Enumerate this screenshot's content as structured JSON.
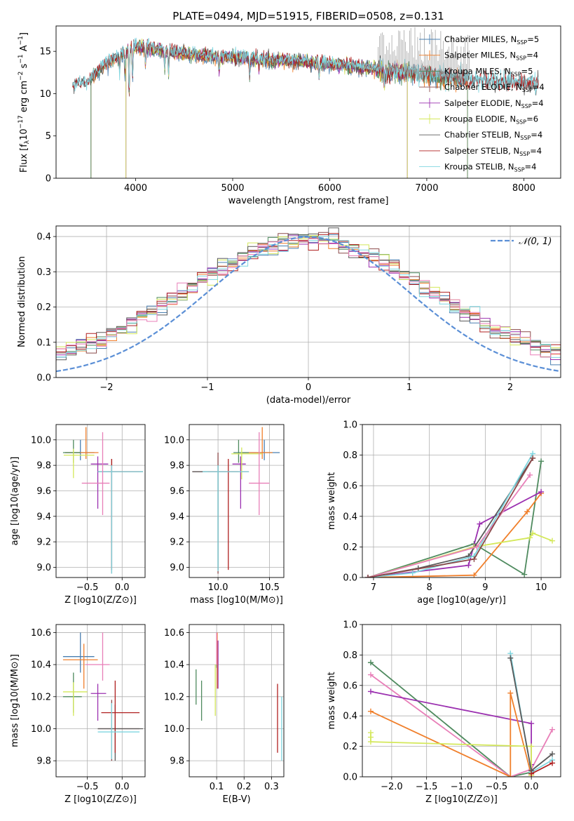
{
  "title": "PLATE=0494, MJD=51915, FIBERID=0508, z=0.131",
  "colors": {
    "chabrier_miles": "#4a7fb0",
    "salpeter_miles": "#f07f2b",
    "kroupa_miles": "#4e8a5e",
    "chabrier_elodie": "#8b4a4a",
    "salpeter_elodie": "#9b30b0",
    "kroupa_elodie": "#d4e85a",
    "chabrier_stelib": "#5a5a5a",
    "salpeter_stelib": "#b02020",
    "kroupa_stelib": "#7fd6e0",
    "pink": "#e87fb8",
    "normal": "#5b8fd6",
    "grid": "#b0b0b0"
  },
  "chart_data": [
    {
      "id": "spectrum",
      "type": "line",
      "title": "PLATE=0494, MJD=51915, FIBERID=0508, z=0.131",
      "xlabel": "wavelength [Angstrom, rest frame]",
      "ylabel": "Flux [f_λ 10^-17 erg cm^-2 s^-1 A^-1]",
      "xlim": [
        3180,
        8380
      ],
      "ylim": [
        0,
        18
      ],
      "xticks": [
        "4000",
        "5000",
        "6000",
        "7000",
        "8000"
      ],
      "yticks": [
        "0",
        "5",
        "10",
        "15"
      ],
      "legend_position": "upper right",
      "legend": [
        "Chabrier MILES, N_SSP=5",
        "Salpeter MILES, N_SSP=4",
        "Kroupa MILES, N_SSP=5",
        "Chabrier ELODIE, N_SSP=4",
        "Salpeter ELODIE, N_SSP=4",
        "Kroupa ELODIE, N_SSP=6",
        "Chabrier STELIB, N_SSP=4",
        "Salpeter STELIB, N_SSP=4",
        "Kroupa STELIB, N_SSP=4"
      ],
      "continuum": {
        "x": [
          3350,
          3500,
          3700,
          3850,
          4000,
          4200,
          4400,
          4600,
          4800,
          5000,
          5200,
          5400,
          5600,
          5800,
          6000,
          6200,
          6400,
          6600,
          6800,
          7000,
          7200,
          7400,
          7600,
          7800,
          8000,
          8150
        ],
        "y": [
          10.9,
          11.3,
          13.6,
          14.6,
          15.6,
          15.3,
          14.9,
          14.6,
          14.4,
          14.3,
          14.2,
          14.0,
          13.9,
          13.7,
          13.5,
          13.3,
          13.0,
          12.7,
          12.5,
          12.2,
          12.0,
          11.7,
          11.5,
          11.3,
          11.1,
          11.1
        ]
      }
    },
    {
      "id": "residuals",
      "type": "line",
      "xlabel": "(data-model)/error",
      "ylabel": "Normed distribution",
      "xlim": [
        -2.5,
        2.5
      ],
      "ylim": [
        0,
        0.43
      ],
      "xticks": [
        "−2",
        "−1",
        "0",
        "1",
        "2"
      ],
      "yticks": [
        "0.0",
        "0.1",
        "0.2",
        "0.3",
        "0.4"
      ],
      "legend": [
        "𝒩(0, 1)"
      ],
      "series_reference": {
        "name": "𝒩(0, 1)",
        "mean": 0,
        "sigma": 1
      },
      "histogram_bin_width": 0.1
    },
    {
      "id": "age_vs_Z",
      "type": "scatter",
      "xlabel": "Z [log10(Z/Z⊙)]",
      "ylabel": "age [log10(age/yr)]",
      "xlim": [
        -0.95,
        0.33
      ],
      "ylim": [
        8.92,
        10.12
      ],
      "xticks": [
        "−0.5",
        "0.0"
      ],
      "yticks": [
        "9.0",
        "9.2",
        "9.4",
        "9.6",
        "9.8",
        "10.0"
      ],
      "points": [
        {
          "x": -0.6,
          "y": 9.9,
          "xerr": [
            0.22,
            0.2
          ],
          "yerr": [
            0.06,
            0.1
          ],
          "c": "chabrier_miles"
        },
        {
          "x": -0.52,
          "y": 9.9,
          "xerr": [
            0.3,
            0.18
          ],
          "yerr": [
            0.05,
            0.2
          ],
          "c": "salpeter_miles"
        },
        {
          "x": -0.7,
          "y": 9.9,
          "xerr": [
            0.15,
            0.1
          ],
          "yerr": [
            0.08,
            0.1
          ],
          "c": "kroupa_miles"
        },
        {
          "x": -0.15,
          "y": 9.75,
          "xerr": [
            0.2,
            0.45
          ],
          "yerr": [
            0.8,
            0.1
          ],
          "c": "chabrier_elodie"
        },
        {
          "x": -0.35,
          "y": 9.81,
          "xerr": [
            0.1,
            0.15
          ],
          "yerr": [
            0.35,
            0.06
          ],
          "c": "salpeter_elodie"
        },
        {
          "x": -0.7,
          "y": 9.88,
          "xerr": [
            0.14,
            0.3
          ],
          "yerr": [
            0.18,
            0.05
          ],
          "c": "kroupa_elodie"
        },
        {
          "x": -0.15,
          "y": 9.75,
          "xerr": [
            0.2,
            0.45
          ],
          "yerr": [
            0.77,
            0.05
          ],
          "c": "chabrier_stelib"
        },
        {
          "x": -0.15,
          "y": 9.75,
          "xerr": [
            0.05,
            0.4
          ],
          "yerr": [
            0.77,
            0.1
          ],
          "c": "salpeter_stelib"
        },
        {
          "x": -0.15,
          "y": 9.75,
          "xerr": [
            0.2,
            0.45
          ],
          "yerr": [
            0.8,
            0.05
          ],
          "c": "kroupa_stelib"
        },
        {
          "x": -0.28,
          "y": 9.66,
          "xerr": [
            0.3,
            0.1
          ],
          "yerr": [
            0.25,
            0.4
          ],
          "c": "pink"
        }
      ]
    },
    {
      "id": "age_vs_mass",
      "type": "scatter",
      "xlabel": "mass [log10(M/M⊙)]",
      "ylabel": "",
      "xlim": [
        9.72,
        10.64
      ],
      "ylim": [
        8.92,
        10.12
      ],
      "xticks": [
        "10.0",
        "10.5"
      ],
      "yticks": [
        "9.0",
        "9.2",
        "9.4",
        "9.6",
        "9.8",
        "10.0"
      ],
      "points": [
        {
          "x": 10.45,
          "y": 9.9,
          "xerr": [
            0.15,
            0.15
          ],
          "yerr": [
            0.06,
            0.1
          ],
          "c": "chabrier_miles"
        },
        {
          "x": 10.43,
          "y": 9.9,
          "xerr": [
            0.2,
            0.1
          ],
          "yerr": [
            0.05,
            0.2
          ],
          "c": "salpeter_miles"
        },
        {
          "x": 10.2,
          "y": 9.9,
          "xerr": [
            0.05,
            0.1
          ],
          "yerr": [
            0.08,
            0.1
          ],
          "c": "kroupa_miles"
        },
        {
          "x": 10.0,
          "y": 9.75,
          "xerr": [
            0.25,
            0.3
          ],
          "yerr": [
            0.8,
            0.15
          ],
          "c": "chabrier_elodie"
        },
        {
          "x": 10.22,
          "y": 9.81,
          "xerr": [
            0.08,
            0.05
          ],
          "yerr": [
            0.35,
            0.06
          ],
          "c": "salpeter_elodie"
        },
        {
          "x": 10.23,
          "y": 9.89,
          "xerr": [
            0.1,
            0.2
          ],
          "yerr": [
            0.2,
            0.05
          ],
          "c": "kroupa_elodie"
        },
        {
          "x": 10.0,
          "y": 9.75,
          "xerr": [
            0.25,
            0.2
          ],
          "yerr": [
            0.77,
            0.05
          ],
          "c": "chabrier_stelib"
        },
        {
          "x": 10.1,
          "y": 9.75,
          "xerr": [
            0.2,
            0.1
          ],
          "yerr": [
            0.77,
            0.1
          ],
          "c": "salpeter_stelib"
        },
        {
          "x": 10.0,
          "y": 9.75,
          "xerr": [
            0.15,
            0.3
          ],
          "yerr": [
            0.78,
            0.05
          ],
          "c": "kroupa_stelib"
        },
        {
          "x": 10.4,
          "y": 9.66,
          "xerr": [
            0.1,
            0.1
          ],
          "yerr": [
            0.25,
            0.4
          ],
          "c": "pink"
        }
      ]
    },
    {
      "id": "weight_vs_age",
      "type": "line",
      "xlabel": "age [log10(age/yr)]",
      "ylabel": "mass weight",
      "xlim": [
        6.8,
        10.35
      ],
      "ylim": [
        0,
        1.0
      ],
      "xticks": [
        "7",
        "8",
        "9",
        "10"
      ],
      "yticks": [
        "0.0",
        "0.2",
        "0.4",
        "0.6",
        "0.8",
        "1.0"
      ],
      "series": [
        {
          "c": "kroupa_miles",
          "x": [
            6.9,
            8.8,
            9.7,
            10.0
          ],
          "y": [
            0.0,
            0.22,
            0.02,
            0.76
          ]
        },
        {
          "c": "salpeter_miles",
          "x": [
            6.9,
            8.8,
            9.75,
            10.0
          ],
          "y": [
            0.0,
            0.015,
            0.43,
            0.55
          ]
        },
        {
          "c": "salpeter_elodie",
          "x": [
            6.9,
            8.7,
            8.9,
            10.0
          ],
          "y": [
            0.0,
            0.08,
            0.35,
            0.56
          ]
        },
        {
          "c": "kroupa_elodie",
          "x": [
            6.9,
            8.8,
            9.8,
            9.85,
            10.2
          ],
          "y": [
            0.0,
            0.2,
            0.26,
            0.29,
            0.24
          ]
        },
        {
          "c": "chabrier_stelib",
          "x": [
            6.9,
            7.8,
            8.7,
            9.85
          ],
          "y": [
            0.0,
            0.06,
            0.14,
            0.78
          ]
        },
        {
          "c": "kroupa_stelib",
          "x": [
            6.9,
            7.7,
            8.8,
            9.85
          ],
          "y": [
            0.0,
            0.03,
            0.14,
            0.81
          ]
        },
        {
          "c": "pink",
          "x": [
            6.9,
            8.85,
            9.8
          ],
          "y": [
            0.0,
            0.2,
            0.67
          ]
        },
        {
          "c": "chabrier_elodie",
          "x": [
            6.9,
            8.8,
            9.85
          ],
          "y": [
            0.0,
            0.12,
            0.78
          ]
        }
      ]
    },
    {
      "id": "mass_vs_Z",
      "type": "scatter",
      "xlabel": "Z [log10(Z/Z⊙)]",
      "ylabel": "mass [log10(M/M⊙)]",
      "xlim": [
        -0.95,
        0.33
      ],
      "ylim": [
        9.7,
        10.65
      ],
      "xticks": [
        "−0.5",
        "0.0"
      ],
      "yticks": [
        "9.8",
        "10.0",
        "10.2",
        "10.4",
        "10.6"
      ],
      "points": [
        {
          "x": -0.6,
          "y": 10.45,
          "xerr": [
            0.25,
            0.2
          ],
          "yerr": [
            0.1,
            0.15
          ],
          "c": "chabrier_miles"
        },
        {
          "x": -0.55,
          "y": 10.43,
          "xerr": [
            0.3,
            0.2
          ],
          "yerr": [
            0.18,
            0.1
          ],
          "c": "salpeter_miles"
        },
        {
          "x": -0.7,
          "y": 10.2,
          "xerr": [
            0.15,
            0.12
          ],
          "yerr": [
            0.1,
            0.15
          ],
          "c": "kroupa_miles"
        },
        {
          "x": -0.15,
          "y": 10.0,
          "xerr": [
            0.2,
            0.4
          ],
          "yerr": [
            0.2,
            0.18
          ],
          "c": "chabrier_elodie"
        },
        {
          "x": -0.35,
          "y": 10.22,
          "xerr": [
            0.1,
            0.12
          ],
          "yerr": [
            0.17,
            0.06
          ],
          "c": "salpeter_elodie"
        },
        {
          "x": -0.7,
          "y": 10.23,
          "xerr": [
            0.15,
            0.2
          ],
          "yerr": [
            0.15,
            0.06
          ],
          "c": "kroupa_elodie"
        },
        {
          "x": -0.1,
          "y": 10.0,
          "xerr": [
            0.25,
            0.4
          ],
          "yerr": [
            0.2,
            0.15
          ],
          "c": "chabrier_stelib"
        },
        {
          "x": -0.1,
          "y": 10.1,
          "xerr": [
            0.2,
            0.35
          ],
          "yerr": [
            0.25,
            0.2
          ],
          "c": "salpeter_stelib"
        },
        {
          "x": -0.15,
          "y": 9.98,
          "xerr": [
            0.2,
            0.4
          ],
          "yerr": [
            0.17,
            0.18
          ],
          "c": "kroupa_stelib"
        },
        {
          "x": -0.28,
          "y": 10.4,
          "xerr": [
            0.25,
            0.1
          ],
          "yerr": [
            0.1,
            0.2
          ],
          "c": "pink"
        }
      ]
    },
    {
      "id": "mass_vs_ebv",
      "type": "scatter",
      "xlabel": "E(B-V)",
      "ylabel": "",
      "xlim": [
        0.0,
        0.345
      ],
      "ylim": [
        9.7,
        10.65
      ],
      "xticks": [
        "0.1",
        "0.2",
        "0.3"
      ],
      "yticks": [
        "9.8",
        "10.0",
        "10.2",
        "10.4",
        "10.6"
      ],
      "bars": [
        {
          "x": 0.1,
          "y0": 10.38,
          "y1": 10.6,
          "c": "chabrier_miles"
        },
        {
          "x": 0.102,
          "y0": 10.25,
          "y1": 10.6,
          "c": "salpeter_miles"
        },
        {
          "x": 0.025,
          "y0": 10.15,
          "y1": 10.37,
          "c": "kroupa_miles"
        },
        {
          "x": 0.045,
          "y0": 10.05,
          "y1": 10.3,
          "c": "kroupa_miles"
        },
        {
          "x": 0.105,
          "y0": 10.25,
          "y1": 10.55,
          "c": "salpeter_elodie"
        },
        {
          "x": 0.095,
          "y0": 10.08,
          "y1": 10.4,
          "c": "kroupa_elodie"
        },
        {
          "x": 0.322,
          "y0": 9.85,
          "y1": 10.28,
          "c": "salpeter_stelib"
        },
        {
          "x": 0.337,
          "y0": 9.8,
          "y1": 10.2,
          "c": "kroupa_stelib"
        },
        {
          "x": 0.1,
          "y0": 10.4,
          "y1": 10.6,
          "c": "pink"
        }
      ]
    },
    {
      "id": "weight_vs_Z",
      "type": "line",
      "xlabel": "Z [log10(Z/Z⊙)]",
      "ylabel": "mass weight",
      "xlim": [
        -2.42,
        0.42
      ],
      "ylim": [
        0,
        1.0
      ],
      "xticks": [
        "−2.0",
        "−1.5",
        "−1.0",
        "−0.5",
        "0.0"
      ],
      "yticks": [
        "0.0",
        "0.2",
        "0.4",
        "0.6",
        "0.8",
        "1.0"
      ],
      "series": [
        {
          "c": "kroupa_miles",
          "x": [
            -2.3,
            -0.3,
            0.0
          ],
          "y": [
            0.75,
            0.0,
            0.03
          ]
        },
        {
          "c": "pink",
          "x": [
            -2.3,
            -0.3,
            0.0,
            0.3
          ],
          "y": [
            0.67,
            0.0,
            0.05,
            0.31
          ]
        },
        {
          "c": "salpeter_elodie",
          "x": [
            -2.3,
            0.0,
            0.0
          ],
          "y": [
            0.56,
            0.35,
            0.08
          ]
        },
        {
          "c": "salpeter_miles",
          "x": [
            -2.3,
            -0.3,
            -0.3,
            0.0
          ],
          "y": [
            0.43,
            0.0,
            0.55,
            0.01
          ]
        },
        {
          "c": "kroupa_elodie",
          "x": [
            -2.3,
            -2.3,
            -2.3,
            0.0,
            0.0
          ],
          "y": [
            0.29,
            0.26,
            0.23,
            0.2,
            0.01
          ]
        },
        {
          "c": "kroupa_stelib",
          "x": [
            -0.3,
            0.0,
            0.3
          ],
          "y": [
            0.81,
            0.03,
            0.11
          ]
        },
        {
          "c": "chabrier_stelib",
          "x": [
            -0.3,
            0.0,
            0.3
          ],
          "y": [
            0.78,
            0.04,
            0.15
          ]
        },
        {
          "c": "salpeter_stelib",
          "x": [
            0.0,
            0.3
          ],
          "y": [
            0.02,
            0.09
          ]
        }
      ]
    }
  ]
}
